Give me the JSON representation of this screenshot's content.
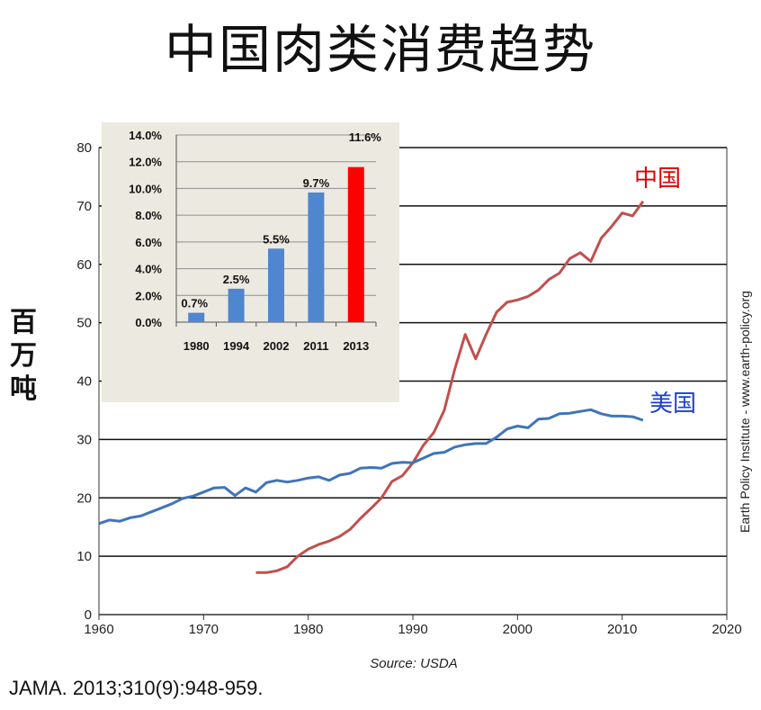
{
  "title": "中国肉类消费趋势",
  "units_label": "百万吨",
  "citation": "JAMA. 2013;310(9):948-959.",
  "source": "Source: USDA",
  "credit": "Earth Policy Institute - www.earth-policy.org",
  "colors": {
    "china": "#c0504d",
    "usa": "#3f75b9",
    "inset_bar": "#4f86cf",
    "inset_highlight": "#ff0000",
    "inset_bg": "#ece9e0"
  },
  "chart_data": [
    {
      "type": "line",
      "title": "",
      "xlabel": "",
      "ylabel": "百万吨",
      "xlim": [
        1960,
        2020
      ],
      "ylim": [
        0,
        80
      ],
      "x_ticks": [
        "1960",
        "1970",
        "1980",
        "1990",
        "2000",
        "2010",
        "2020"
      ],
      "y_ticks": [
        "0",
        "10",
        "20",
        "30",
        "40",
        "50",
        "60",
        "70",
        "80"
      ],
      "series": [
        {
          "name": "中国",
          "x": [
            1975,
            1976,
            1977,
            1978,
            1979,
            1980,
            1981,
            1982,
            1983,
            1984,
            1985,
            1986,
            1987,
            1988,
            1989,
            1990,
            1991,
            1992,
            1993,
            1994,
            1995,
            1996,
            1997,
            1998,
            1999,
            2000,
            2001,
            2002,
            2003,
            2004,
            2005,
            2006,
            2007,
            2008,
            2009,
            2010,
            2011,
            2012
          ],
          "values": [
            7.2,
            7.2,
            7.5,
            8.2,
            10.0,
            11.2,
            12.0,
            12.6,
            13.4,
            14.6,
            16.5,
            18.2,
            20.0,
            22.8,
            23.8,
            26.0,
            29.0,
            31.2,
            35.0,
            42.0,
            48.0,
            43.8,
            48.0,
            51.8,
            53.5,
            53.9,
            54.5,
            55.6,
            57.4,
            58.5,
            61.0,
            62.0,
            60.5,
            64.5,
            66.5,
            68.8,
            68.3,
            70.8
          ]
        },
        {
          "name": "美国",
          "x": [
            1960,
            1961,
            1962,
            1963,
            1964,
            1965,
            1966,
            1967,
            1968,
            1969,
            1970,
            1971,
            1972,
            1973,
            1974,
            1975,
            1976,
            1977,
            1978,
            1979,
            1980,
            1981,
            1982,
            1983,
            1984,
            1985,
            1986,
            1987,
            1988,
            1989,
            1990,
            1991,
            1992,
            1993,
            1994,
            1995,
            1996,
            1997,
            1998,
            1999,
            2000,
            2001,
            2002,
            2003,
            2004,
            2005,
            2006,
            2007,
            2008,
            2009,
            2010,
            2011,
            2012
          ],
          "values": [
            15.6,
            16.2,
            16.0,
            16.6,
            16.9,
            17.6,
            18.3,
            19.0,
            19.9,
            20.3,
            21.0,
            21.7,
            21.8,
            20.4,
            21.7,
            21.0,
            22.6,
            23.0,
            22.7,
            23.0,
            23.4,
            23.6,
            23.0,
            23.9,
            24.2,
            25.1,
            25.2,
            25.1,
            25.9,
            26.1,
            26.0,
            26.8,
            27.6,
            27.8,
            28.7,
            29.1,
            29.3,
            29.3,
            30.4,
            31.8,
            32.3,
            32.0,
            33.5,
            33.6,
            34.4,
            34.5,
            34.8,
            35.1,
            34.4,
            34.0,
            34.0,
            33.9,
            33.3
          ]
        }
      ]
    },
    {
      "type": "bar",
      "title": "",
      "categories": [
        "1980",
        "1994",
        "2002",
        "2011",
        "2013"
      ],
      "values": [
        0.7,
        2.5,
        5.5,
        9.7,
        11.6
      ],
      "data_labels": [
        "0.7%",
        "2.5%",
        "5.5%",
        "9.7%",
        "11.6%"
      ],
      "y_ticks": [
        "0.0%",
        "2.0%",
        "4.0%",
        "6.0%",
        "8.0%",
        "10.0%",
        "12.0%",
        "14.0%"
      ],
      "ylim": [
        0,
        14
      ],
      "highlight": "2013"
    }
  ]
}
